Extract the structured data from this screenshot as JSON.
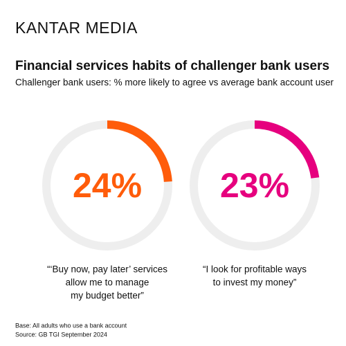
{
  "brand": "KANTAR MEDIA",
  "title": "Financial services habits of challenger bank users",
  "subtitle": "Challenger bank users: % more likely to agree vs average bank account user",
  "chart_data": [
    {
      "type": "donut",
      "values": [
        24
      ],
      "value_labels": [
        "24%"
      ],
      "color": "#ff5c0a",
      "caption": [
        "“‘Buy now, pay later’ services",
        "allow me to manage",
        "my budget better”"
      ]
    },
    {
      "type": "donut",
      "values": [
        23
      ],
      "value_labels": [
        "23%"
      ],
      "color": "#e6007e",
      "caption": [
        "“I look for profitable ways",
        "to invest my money”"
      ]
    }
  ],
  "footnotes": [
    "Base: All adults who use a bank account",
    "Source: GB TGI September 2024"
  ]
}
